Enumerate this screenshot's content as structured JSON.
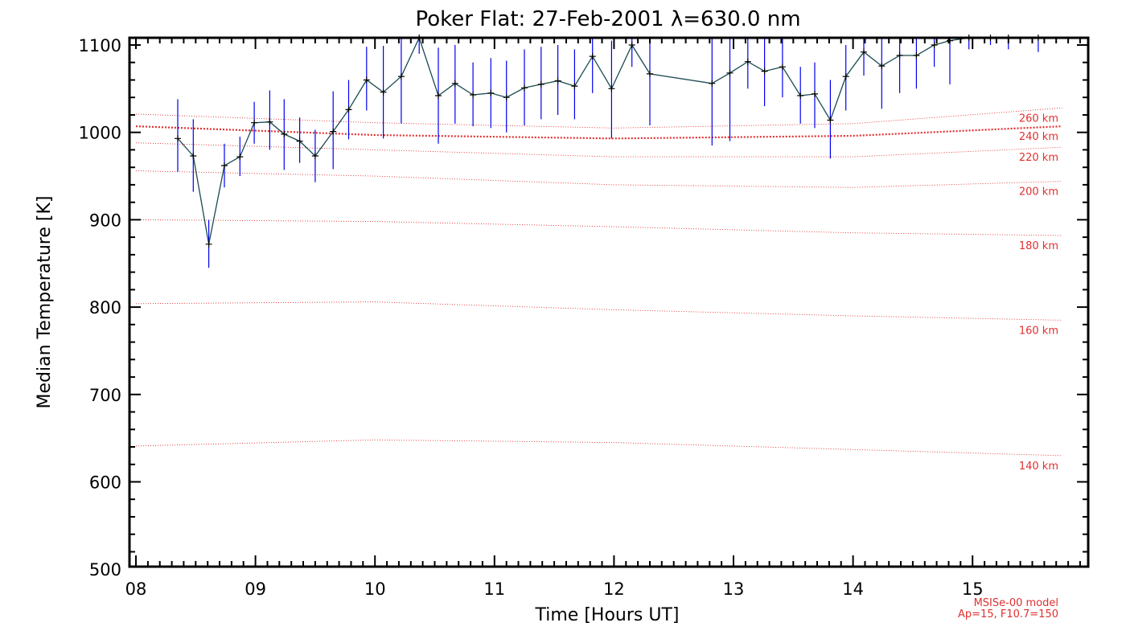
{
  "chart_data": {
    "type": "line",
    "title": "Poker Flat: 27-Feb-2001 λ=630.0 nm",
    "xlabel": "Time [Hours UT]",
    "ylabel": "Median Temperature [K]",
    "xlim": [
      8,
      15.9
    ],
    "ylim": [
      500,
      1100
    ],
    "x_ticks": [
      8,
      9,
      10,
      11,
      12,
      13,
      14,
      15
    ],
    "x_tick_labels": [
      "08",
      "09",
      "10",
      "11",
      "12",
      "13",
      "14",
      "15"
    ],
    "y_ticks": [
      500,
      600,
      700,
      800,
      900,
      1000,
      1100
    ],
    "y_tick_labels": [
      "500",
      "600",
      "700",
      "800",
      "900",
      "1000",
      "1100"
    ],
    "grid": false,
    "series": [
      {
        "values": [
          [
            8.35,
            993,
            955,
            1038
          ],
          [
            8.48,
            973,
            932,
            1015
          ],
          [
            8.61,
            872,
            845,
            900
          ],
          [
            8.74,
            962,
            937,
            987
          ],
          [
            8.87,
            972,
            950,
            995
          ],
          [
            8.99,
            1011,
            987,
            1035
          ],
          [
            9.12,
            1012,
            980,
            1048
          ],
          [
            9.24,
            998,
            957,
            1038
          ],
          [
            9.37,
            990,
            965,
            1017
          ],
          [
            9.5,
            973,
            943,
            1003
          ],
          [
            9.65,
            1001,
            958,
            1047
          ],
          [
            9.78,
            1026,
            992,
            1060
          ],
          [
            9.93,
            1060,
            1025,
            1098
          ],
          [
            10.07,
            1046,
            993,
            1099
          ],
          [
            10.22,
            1064,
            1010,
            1110
          ],
          [
            10.37,
            1110,
            1090,
            1115
          ],
          [
            10.53,
            1042,
            987,
            1097
          ],
          [
            10.67,
            1056,
            1010,
            1100
          ],
          [
            10.82,
            1043,
            1007,
            1080
          ],
          [
            10.97,
            1045,
            1005,
            1085
          ],
          [
            11.1,
            1040,
            1000,
            1082
          ],
          [
            11.25,
            1051,
            1008,
            1095
          ],
          [
            11.39,
            1055,
            1015,
            1098
          ],
          [
            11.53,
            1059,
            1020,
            1100
          ],
          [
            11.67,
            1053,
            1015,
            1095
          ],
          [
            11.82,
            1087,
            1045,
            1110
          ],
          [
            11.98,
            1050,
            993,
            1105
          ],
          [
            12.15,
            1100,
            1075,
            1110
          ],
          [
            12.3,
            1067,
            1008,
            1110
          ],
          [
            12.82,
            1056,
            985,
            1110
          ],
          [
            12.97,
            1068,
            990,
            1110
          ],
          [
            13.12,
            1081,
            1050,
            1110
          ],
          [
            13.26,
            1070,
            1030,
            1110
          ],
          [
            13.41,
            1075,
            1040,
            1110
          ],
          [
            13.56,
            1042,
            1010,
            1075
          ],
          [
            13.68,
            1044,
            1005,
            1080
          ],
          [
            13.81,
            1014,
            970,
            1060
          ],
          [
            13.94,
            1064,
            1025,
            1100
          ],
          [
            14.09,
            1092,
            1065,
            1110
          ],
          [
            14.24,
            1076,
            1027,
            1110
          ],
          [
            14.39,
            1088,
            1045,
            1110
          ],
          [
            14.53,
            1088,
            1050,
            1110
          ],
          [
            14.68,
            1100,
            1075,
            1110
          ],
          [
            14.81,
            1105,
            1055,
            1110
          ],
          [
            14.97,
            1110,
            1095,
            1110
          ],
          [
            15.15,
            1110,
            1100,
            1110
          ],
          [
            15.3,
            1110,
            1095,
            1110
          ],
          [
            15.55,
            1110,
            1092,
            1110
          ]
        ],
        "value_format": "[time_hours, temperature_K, error_low_K, error_high_K]",
        "line_color": "#1a4a52",
        "marker_color": "#000000",
        "error_color": "#0000ee"
      }
    ],
    "model_lines": [
      {
        "label": "140 km",
        "x": [
          8.0,
          10.0,
          12.0,
          14.0,
          15.75
        ],
        "y": [
          641,
          648,
          645,
          637,
          630
        ]
      },
      {
        "label": "160 km",
        "x": [
          8.0,
          10.0,
          12.0,
          14.0,
          15.75
        ],
        "y": [
          804,
          806,
          797,
          790,
          785
        ]
      },
      {
        "label": "180 km",
        "x": [
          8.0,
          10.0,
          12.0,
          14.0,
          15.75
        ],
        "y": [
          900,
          898,
          892,
          885,
          882
        ]
      },
      {
        "label": "200 km",
        "x": [
          8.0,
          10.0,
          12.0,
          14.0,
          15.75
        ],
        "y": [
          956,
          950,
          940,
          937,
          944
        ]
      },
      {
        "label": "220 km",
        "x": [
          8.0,
          10.0,
          12.0,
          14.0,
          15.75
        ],
        "y": [
          988,
          980,
          972,
          972,
          983
        ]
      },
      {
        "label": "240 km",
        "x": [
          8.0,
          10.0,
          12.0,
          14.0,
          15.75
        ],
        "y": [
          1007,
          997,
          993,
          996,
          1007
        ]
      },
      {
        "label": "260 km",
        "x": [
          8.0,
          10.0,
          12.0,
          14.0,
          15.75
        ],
        "y": [
          1021,
          1011,
          1005,
          1010,
          1028
        ]
      }
    ],
    "model_line_color": "#e03030",
    "model_note": [
      "MSISe-00 model",
      "Ap=15, F10.7=150"
    ]
  }
}
